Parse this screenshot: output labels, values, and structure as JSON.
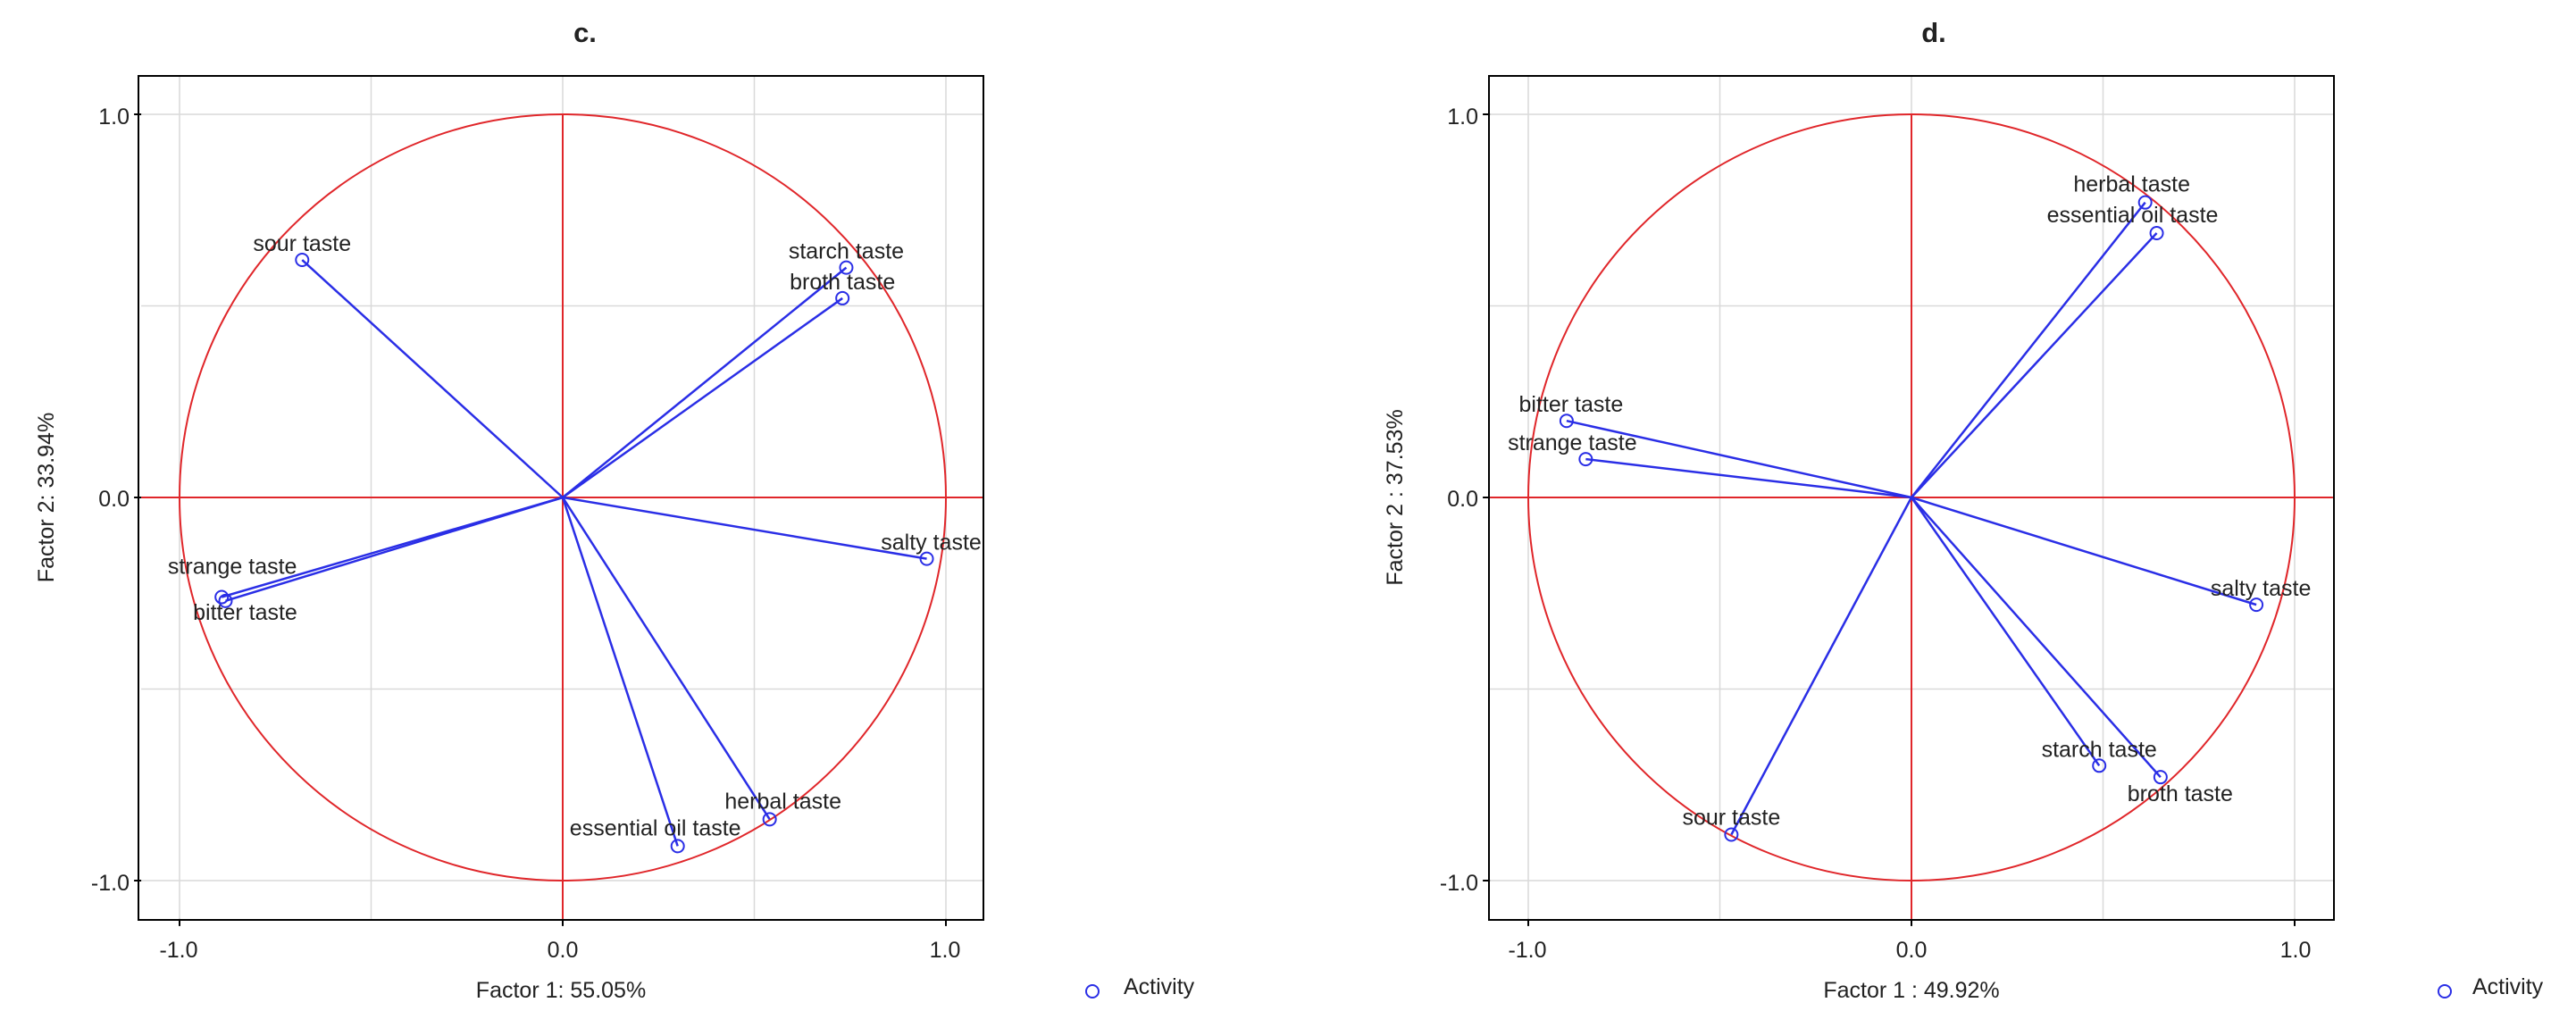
{
  "colors": {
    "circle": "#e0262a",
    "vector": "#2a2ee6",
    "grid": "#d9d9d9",
    "frame": "#000000"
  },
  "chart_data": [
    {
      "type": "scatter",
      "subtype": "correlation-circle",
      "title": "c.",
      "xlabel": "Factor 1: 55.05%",
      "ylabel": "Factor 2: 33.94%",
      "xlim": [
        -1.1,
        1.1
      ],
      "ylim": [
        -1.1,
        1.1
      ],
      "xticks": [
        "-1.0",
        "0.0",
        "1.0"
      ],
      "yticks": [
        "1.0",
        "0.0",
        "-1.0"
      ],
      "grid": true,
      "legend": {
        "label": "Activity",
        "marker": "circle",
        "placement": "bottom-right"
      },
      "variables": [
        {
          "name": "sour taste",
          "x": -0.68,
          "y": 0.62
        },
        {
          "name": "starch taste",
          "x": 0.74,
          "y": 0.6
        },
        {
          "name": "broth taste",
          "x": 0.73,
          "y": 0.52
        },
        {
          "name": "strange taste",
          "x": -0.89,
          "y": -0.26
        },
        {
          "name": "bitter taste",
          "x": -0.88,
          "y": -0.27
        },
        {
          "name": "salty taste",
          "x": 0.95,
          "y": -0.16
        },
        {
          "name": "herbal taste",
          "x": 0.54,
          "y": -0.84
        },
        {
          "name": "essential oil taste",
          "x": 0.3,
          "y": -0.91
        }
      ]
    },
    {
      "type": "scatter",
      "subtype": "correlation-circle",
      "title": "d.",
      "xlabel": "Factor 1 : 49.92%",
      "ylabel": "Factor 2 : 37.53%",
      "xlim": [
        -1.1,
        1.1
      ],
      "ylim": [
        -1.1,
        1.1
      ],
      "xticks": [
        "-1.0",
        "0.0",
        "1.0"
      ],
      "yticks": [
        "1.0",
        "0.0",
        "-1.0"
      ],
      "grid": true,
      "legend": {
        "label": "Activity",
        "marker": "circle",
        "placement": "bottom-right"
      },
      "variables": [
        {
          "name": "herbal taste",
          "x": 0.61,
          "y": 0.77
        },
        {
          "name": "essential oil taste",
          "x": 0.64,
          "y": 0.69
        },
        {
          "name": "bitter taste",
          "x": -0.9,
          "y": 0.2
        },
        {
          "name": "strange taste",
          "x": -0.85,
          "y": 0.1
        },
        {
          "name": "salty taste",
          "x": 0.9,
          "y": -0.28
        },
        {
          "name": "starch taste",
          "x": 0.49,
          "y": -0.7
        },
        {
          "name": "broth taste",
          "x": 0.65,
          "y": -0.73
        },
        {
          "name": "sour taste",
          "x": -0.47,
          "y": -0.88
        }
      ]
    }
  ]
}
